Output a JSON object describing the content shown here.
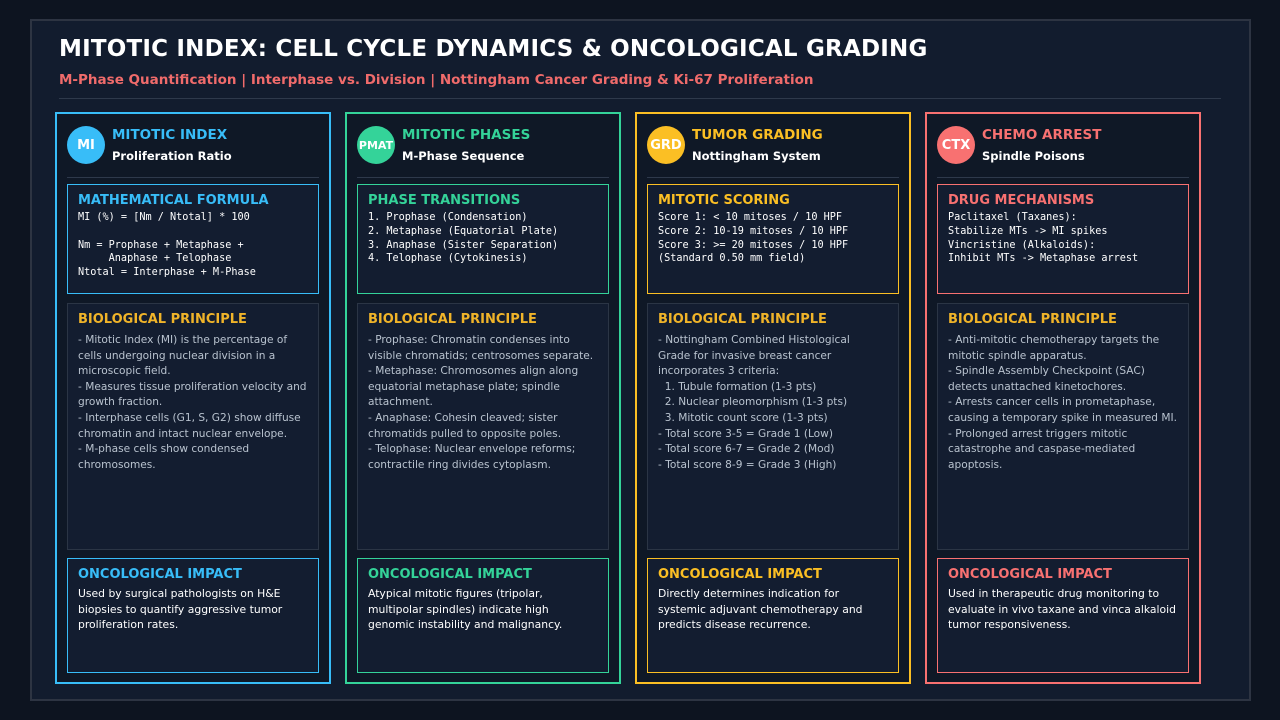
{
  "header": {
    "title": "MITOTIC INDEX: CELL CYCLE DYNAMICS & ONCOLOGICAL GRADING",
    "subtitle": "M-Phase Quantification | Interphase vs. Division | Nottingham Cancer Grading & Ki-67 Proliferation"
  },
  "colors": {
    "col1": "#38bdf8",
    "col2": "#34d399",
    "col3": "#fbbf24",
    "col4": "#f87171",
    "principle_heading": "#f0b429"
  },
  "columns": [
    {
      "badge": "MI",
      "title": "MITOTIC INDEX",
      "subtitle": "Proliferation Ratio",
      "box_title": "MATHEMATICAL FORMULA",
      "box_lines": "MI (%) = [Nm / Ntotal] * 100\n\nNm = Prophase + Metaphase +\n     Anaphase + Telophase\nNtotal = Interphase + M-Phase",
      "principle_title": "BIOLOGICAL PRINCIPLE",
      "principle_text": "- Mitotic Index (MI) is the percentage of\ncells undergoing nuclear division in a\nmicroscopic field.\n- Measures tissue proliferation velocity and\ngrowth fraction.\n- Interphase cells (G1, S, G2) show diffuse\nchromatin and intact nuclear envelope.\n- M-phase cells show condensed\nchromosomes.",
      "impact_title": "ONCOLOGICAL IMPACT",
      "impact_text": "Used by surgical pathologists on H&E biopsies to quantify aggressive tumor proliferation rates."
    },
    {
      "badge": "PMAT",
      "title": "MITOTIC PHASES",
      "subtitle": "M-Phase Sequence",
      "box_title": "PHASE TRANSITIONS",
      "box_lines": "1. Prophase (Condensation)\n2. Metaphase (Equatorial Plate)\n3. Anaphase (Sister Separation)\n4. Telophase (Cytokinesis)",
      "principle_title": "BIOLOGICAL PRINCIPLE",
      "principle_text": "- Prophase: Chromatin condenses into\nvisible chromatids; centrosomes separate.\n- Metaphase: Chromosomes align along\nequatorial metaphase plate; spindle\nattachment.\n- Anaphase: Cohesin cleaved; sister\nchromatids pulled to opposite poles.\n- Telophase: Nuclear envelope reforms;\ncontractile ring divides cytoplasm.",
      "impact_title": "ONCOLOGICAL IMPACT",
      "impact_text": "Atypical mitotic figures (tripolar, multipolar spindles) indicate high genomic instability and malignancy."
    },
    {
      "badge": "GRD",
      "title": "TUMOR GRADING",
      "subtitle": "Nottingham System",
      "box_title": "MITOTIC SCORING",
      "box_lines": "Score 1: < 10 mitoses / 10 HPF\nScore 2: 10-19 mitoses / 10 HPF\nScore 3: >= 20 mitoses / 10 HPF\n(Standard 0.50 mm field)",
      "principle_title": "BIOLOGICAL PRINCIPLE",
      "principle_text": "- Nottingham Combined Histological\nGrade for invasive breast cancer\nincorporates 3 criteria:\n  1. Tubule formation (1-3 pts)\n  2. Nuclear pleomorphism (1-3 pts)\n  3. Mitotic count score (1-3 pts)\n- Total score 3-5 = Grade 1 (Low)\n- Total score 6-7 = Grade 2 (Mod)\n- Total score 8-9 = Grade 3 (High)",
      "impact_title": "ONCOLOGICAL IMPACT",
      "impact_text": "Directly determines indication for systemic adjuvant chemotherapy and predicts disease recurrence."
    },
    {
      "badge": "CTX",
      "title": "CHEMO ARREST",
      "subtitle": "Spindle Poisons",
      "box_title": "DRUG MECHANISMS",
      "box_lines": "Paclitaxel (Taxanes):\nStabilize MTs -> MI spikes\nVincristine (Alkaloids):\nInhibit MTs -> Metaphase arrest",
      "principle_title": "BIOLOGICAL PRINCIPLE",
      "principle_text": "- Anti-mitotic chemotherapy targets the\nmitotic spindle apparatus.\n- Spindle Assembly Checkpoint (SAC)\ndetects unattached kinetochores.\n- Arrests cancer cells in prometaphase,\ncausing a temporary spike in measured MI.\n- Prolonged arrest triggers mitotic\ncatastrophe and caspase-mediated\napoptosis.",
      "impact_title": "ONCOLOGICAL IMPACT",
      "impact_text": "Used in therapeutic drug monitoring to evaluate in vivo taxane and vinca alkaloid tumor responsiveness."
    }
  ]
}
